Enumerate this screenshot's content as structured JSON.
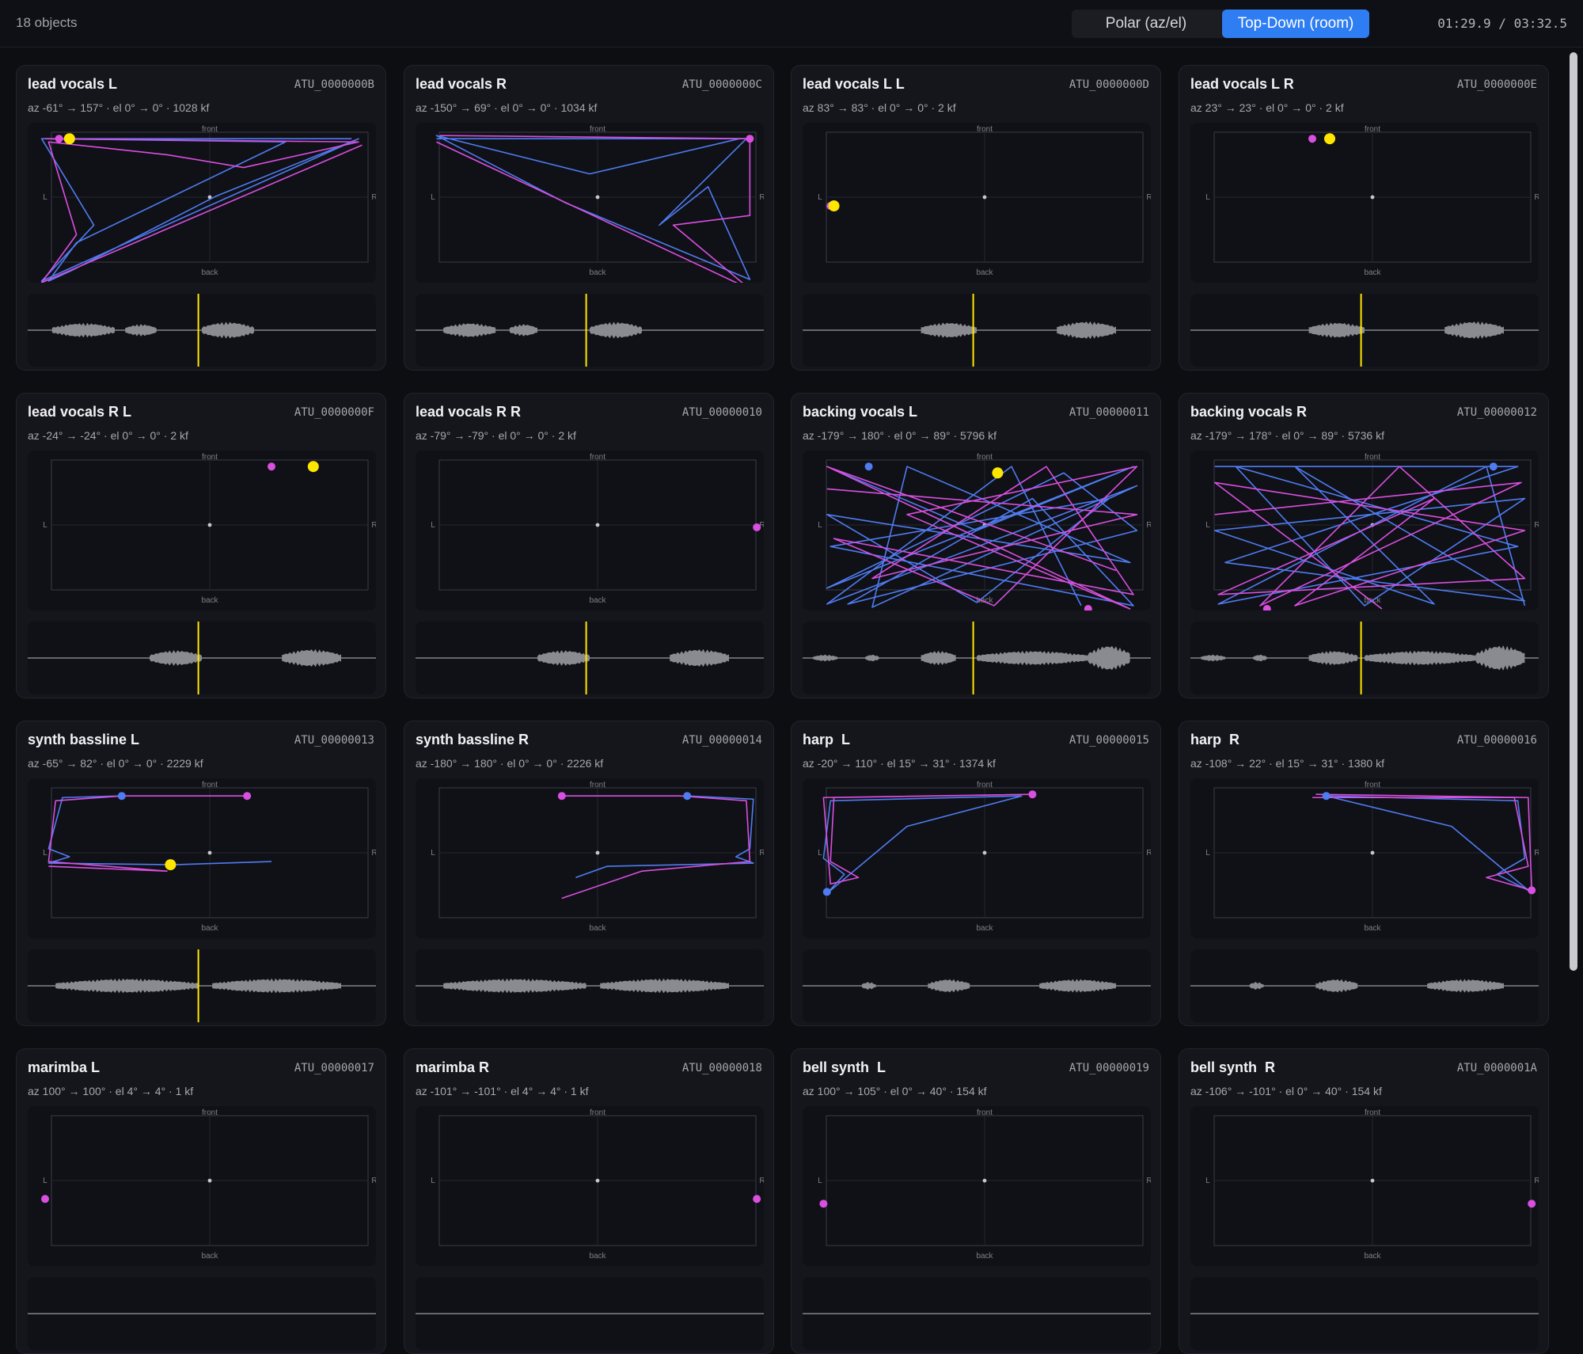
{
  "header": {
    "object_count": "18 objects",
    "view_modes": [
      "Polar (az/el)",
      "Top-Down (room)"
    ],
    "active_view_mode": "Top-Down (room)",
    "timecode": "01:29.9 / 03:32.5"
  },
  "plot_labels": {
    "front": "front",
    "back": "back",
    "left": "L",
    "right": "R"
  },
  "colors": {
    "path_a": "#4f7cf2",
    "path_b": "#d94fe0",
    "playhead": "#ffe600",
    "waveform": "#8a8b90"
  },
  "objects": [
    {
      "name": "lead vocals L",
      "id": "ATU_0000000B",
      "info": "az -61° → 157° · el 0° → 0° · 1028 kf"
    },
    {
      "name": "lead vocals R",
      "id": "ATU_0000000C",
      "info": "az -150° → 69° · el 0° → 0° · 1034 kf"
    },
    {
      "name": "lead vocals L L",
      "id": "ATU_0000000D",
      "info": "az 83° → 83° · el 0° → 0° · 2 kf"
    },
    {
      "name": "lead vocals L R",
      "id": "ATU_0000000E",
      "info": "az 23° → 23° · el 0° → 0° · 2 kf"
    },
    {
      "name": "lead vocals R L",
      "id": "ATU_0000000F",
      "info": "az -24° → -24° · el 0° → 0° · 2 kf"
    },
    {
      "name": "lead vocals R R",
      "id": "ATU_00000010",
      "info": "az -79° → -79° · el 0° → 0° · 2 kf"
    },
    {
      "name": "backing vocals L",
      "id": "ATU_00000011",
      "info": "az -179° → 180° · el 0° → 89° · 5796 kf"
    },
    {
      "name": "backing vocals R",
      "id": "ATU_00000012",
      "info": "az -179° → 178° · el 0° → 89° · 5736 kf"
    },
    {
      "name": "synth bassline L",
      "id": "ATU_00000013",
      "info": "az -65° → 82° · el 0° → 0° · 2229 kf"
    },
    {
      "name": "synth bassline R",
      "id": "ATU_00000014",
      "info": "az -180° → 180° · el 0° → 0° · 2226 kf"
    },
    {
      "name": "harp  L",
      "id": "ATU_00000015",
      "info": "az -20° → 110° · el 15° → 31° · 1374 kf"
    },
    {
      "name": "harp  R",
      "id": "ATU_00000016",
      "info": "az -108° → 22° · el 15° → 31° · 1380 kf"
    },
    {
      "name": "marimba L",
      "id": "ATU_00000017",
      "info": "az 100° → 100° · el 4° → 4° · 1 kf"
    },
    {
      "name": "marimba R",
      "id": "ATU_00000018",
      "info": "az -101° → -101° · el 4° → 4° · 1 kf"
    },
    {
      "name": "bell synth  L",
      "id": "ATU_00000019",
      "info": "az 100° → 105° · el 0° → 40° · 154 kf"
    },
    {
      "name": "bell synth  R",
      "id": "ATU_0000001A",
      "info": "az -106° → -101° · el 0° → 40° · 154 kf"
    }
  ]
}
